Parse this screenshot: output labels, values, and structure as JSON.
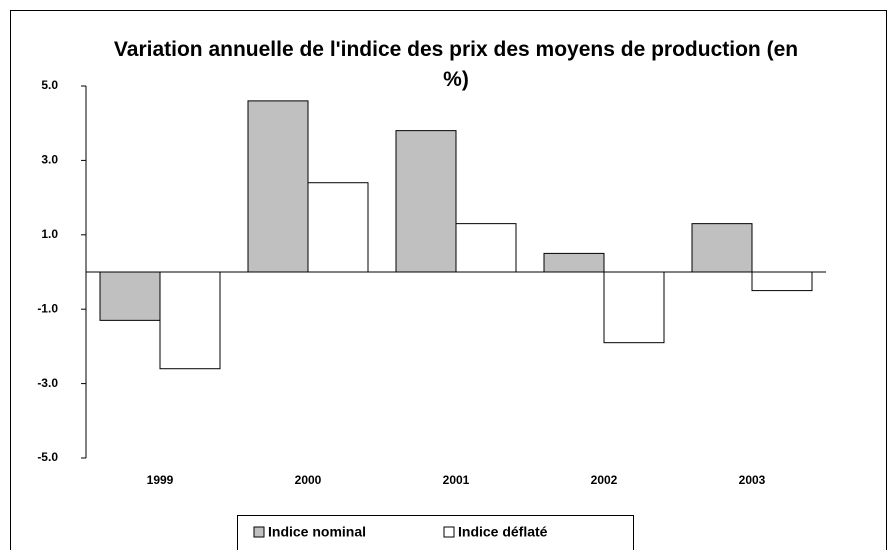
{
  "chart_data": {
    "type": "bar",
    "title": "Variation annuelle de l'indice des prix des moyens de production (en %)",
    "categories": [
      "1999",
      "2000",
      "2001",
      "2002",
      "2003"
    ],
    "series": [
      {
        "name": "Indice nominal",
        "color": "#c0c0c0",
        "values": [
          -1.3,
          4.6,
          3.8,
          0.5,
          1.3
        ]
      },
      {
        "name": "Indice déflaté",
        "color": "#ffffff",
        "values": [
          -2.6,
          2.4,
          1.3,
          -1.9,
          -0.5
        ]
      }
    ],
    "ylim": [
      -5,
      5
    ],
    "yticks": [
      {
        "value": -5,
        "label": "-5.0"
      },
      {
        "value": -3,
        "label": "-3.0"
      },
      {
        "value": -1,
        "label": "-1.0"
      },
      {
        "value": 1,
        "label": "1.0"
      },
      {
        "value": 3,
        "label": "3.0"
      },
      {
        "value": 5,
        "label": "5.0"
      }
    ],
    "legend": "bottom"
  }
}
